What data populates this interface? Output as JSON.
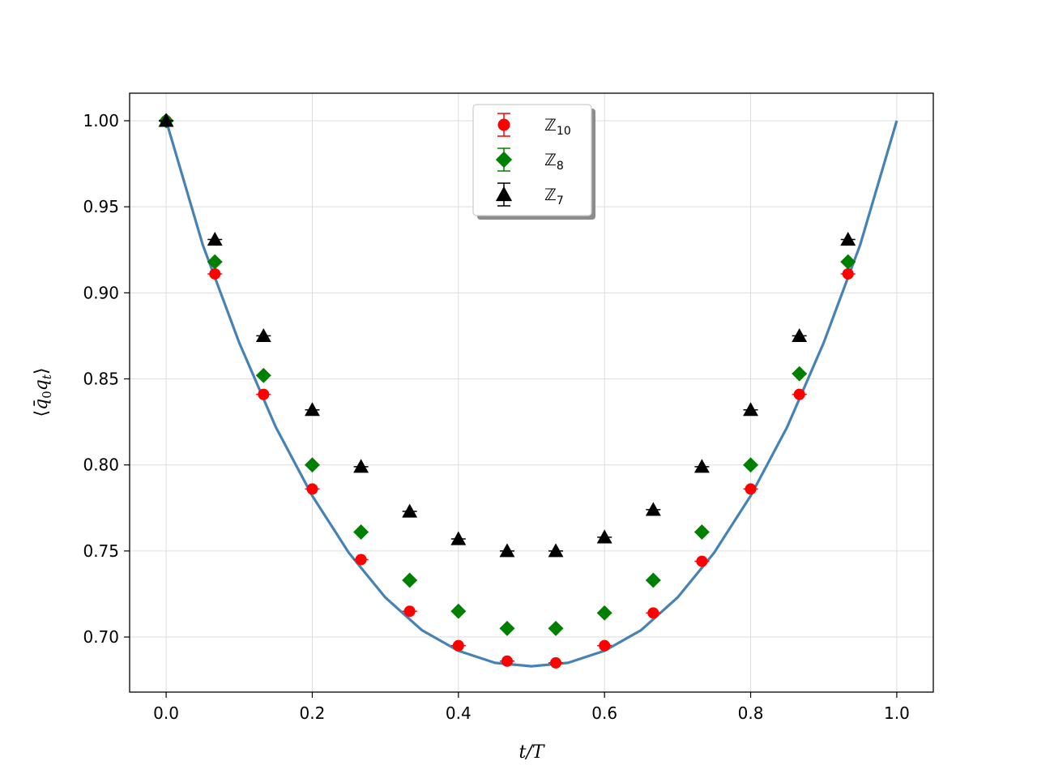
{
  "chart_data": {
    "type": "scatter",
    "xlabel_parts": [
      {
        "t": "t/T",
        "style": "italic"
      }
    ],
    "ylabel_parts": [
      {
        "t": "⟨",
        "style": "normal"
      },
      {
        "t": "q̄",
        "style": "italic"
      },
      {
        "t": "0",
        "style": "sub"
      },
      {
        "t": "q",
        "style": "italic"
      },
      {
        "t": "t",
        "style": "sub-italic"
      },
      {
        "t": "⟩",
        "style": "normal"
      }
    ],
    "xlim": [
      -0.05,
      1.05
    ],
    "ylim": [
      0.668,
      1.016
    ],
    "xticks": [
      0.0,
      0.2,
      0.4,
      0.6,
      0.8,
      1.0
    ],
    "xtick_labels": [
      "0.0",
      "0.2",
      "0.4",
      "0.6",
      "0.8",
      "1.0"
    ],
    "yticks": [
      0.7,
      0.75,
      0.8,
      0.85,
      0.9,
      0.95,
      1.0
    ],
    "ytick_labels": [
      "0.70",
      "0.75",
      "0.80",
      "0.85",
      "0.90",
      "0.95",
      "1.00"
    ],
    "grid": true,
    "legend_position": "top-center",
    "x": [
      0.0,
      0.0667,
      0.1333,
      0.2,
      0.2667,
      0.3333,
      0.4,
      0.4667,
      0.5333,
      0.6,
      0.6667,
      0.7333,
      0.8,
      0.8667,
      0.9333
    ],
    "series": [
      {
        "name": "10",
        "legend_base": "ℤ",
        "legend_sub": "10",
        "marker": "circle",
        "color": "#ff0000",
        "values": [
          1.0,
          0.911,
          0.841,
          0.786,
          0.745,
          0.715,
          0.695,
          0.686,
          0.685,
          0.695,
          0.714,
          0.744,
          0.786,
          0.841,
          0.911
        ]
      },
      {
        "name": "8",
        "legend_base": "ℤ",
        "legend_sub": "8",
        "marker": "diamond",
        "color": "#008000",
        "values": [
          1.0,
          0.918,
          0.852,
          0.8,
          0.761,
          0.733,
          0.715,
          0.705,
          0.705,
          0.714,
          0.733,
          0.761,
          0.8,
          0.853,
          0.918
        ]
      },
      {
        "name": "7",
        "legend_base": "ℤ",
        "legend_sub": "7",
        "marker": "triangle",
        "color": "#000000",
        "values": [
          1.0,
          0.931,
          0.875,
          0.832,
          0.799,
          0.773,
          0.757,
          0.75,
          0.75,
          0.758,
          0.774,
          0.799,
          0.832,
          0.875,
          0.931
        ]
      }
    ],
    "fit_curve": {
      "color": "#4682b4",
      "x": [
        0.0,
        0.05,
        0.1,
        0.15,
        0.2,
        0.25,
        0.3,
        0.35,
        0.4,
        0.45,
        0.5,
        0.55,
        0.6,
        0.65,
        0.7,
        0.75,
        0.8,
        0.85,
        0.9,
        0.95,
        1.0
      ],
      "y": [
        1.0,
        0.928,
        0.871,
        0.822,
        0.782,
        0.749,
        0.723,
        0.704,
        0.692,
        0.685,
        0.683,
        0.685,
        0.692,
        0.704,
        0.723,
        0.749,
        0.782,
        0.822,
        0.871,
        0.928,
        1.0
      ]
    }
  }
}
